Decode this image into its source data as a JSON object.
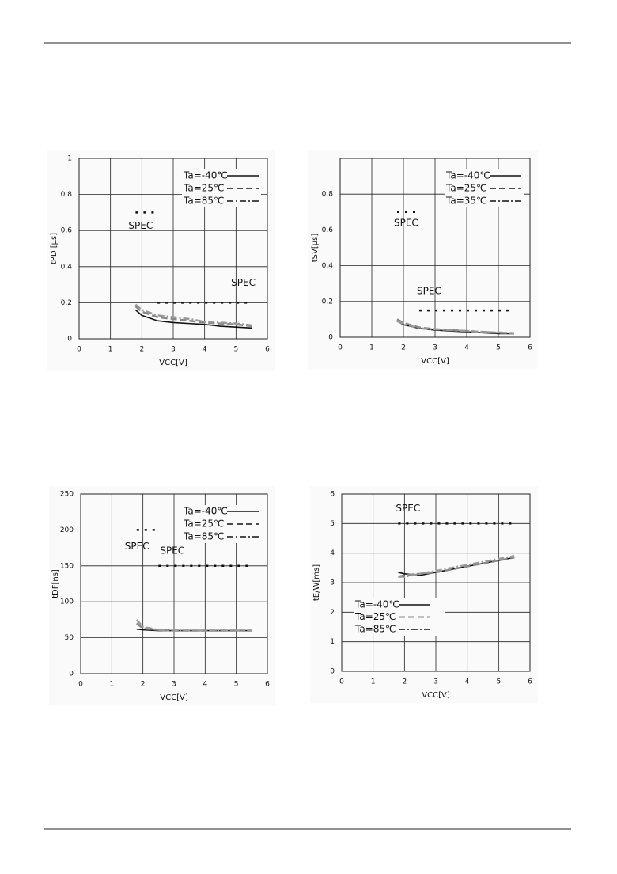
{
  "chart_data": [
    {
      "type": "line",
      "x_label": "VCC[V]",
      "y_label": "tPD [μs]",
      "xlim": [
        0,
        6
      ],
      "xticks": [
        0,
        1,
        2,
        3,
        4,
        5,
        6
      ],
      "ylim": [
        0,
        1
      ],
      "yticks": [
        0,
        0.2,
        0.4,
        0.6,
        0.8,
        1
      ],
      "grid": true,
      "legend": "upper right",
      "x": [
        1.8,
        2,
        2.5,
        3,
        3.5,
        4,
        4.5,
        5,
        5.5
      ],
      "series": [
        {
          "name": "Ta=-40℃",
          "color": "#111111",
          "dash": "solid",
          "values": [
            0.16,
            0.13,
            0.1,
            0.09,
            0.085,
            0.08,
            0.07,
            0.065,
            0.06
          ]
        },
        {
          "name": "Ta=25℃",
          "color": "#888888",
          "dash": "dashed",
          "values": [
            0.18,
            0.15,
            0.12,
            0.11,
            0.1,
            0.09,
            0.085,
            0.08,
            0.07
          ]
        },
        {
          "name": "Ta=85℃",
          "color": "#999999",
          "dash": "dashdot",
          "values": [
            0.19,
            0.16,
            0.13,
            0.12,
            0.11,
            0.095,
            0.09,
            0.085,
            0.075
          ]
        }
      ],
      "spec": [
        {
          "label": "SPEC",
          "x": [
            1.8,
            2.5
          ],
          "values": [
            0.7,
            0.7
          ]
        },
        {
          "label": "SPEC",
          "x": [
            2.5,
            5.5
          ],
          "values": [
            0.2,
            0.2
          ]
        }
      ]
    },
    {
      "type": "line",
      "x_label": "VCC[V]",
      "y_label": "tSV[μs]",
      "xlim": [
        0,
        6
      ],
      "xticks": [
        0,
        1,
        2,
        3,
        4,
        5,
        6
      ],
      "ylim": [
        0,
        1
      ],
      "yticks": [
        0,
        0.2,
        0.4,
        0.6,
        0.8
      ],
      "grid": true,
      "legend": "upper right",
      "x": [
        1.8,
        2,
        2.5,
        3,
        3.5,
        4,
        4.5,
        5,
        5.5
      ],
      "series": [
        {
          "name": "Ta=-40℃",
          "color": "#111111",
          "dash": "solid",
          "values": [
            0.09,
            0.07,
            0.05,
            0.04,
            0.035,
            0.03,
            0.025,
            0.02,
            0.02
          ]
        },
        {
          "name": "Ta=25℃",
          "color": "#888888",
          "dash": "dashed",
          "values": [
            0.1,
            0.08,
            0.055,
            0.045,
            0.04,
            0.035,
            0.03,
            0.025,
            0.022
          ]
        },
        {
          "name": "Ta=35℃",
          "color": "#999999",
          "dash": "dashdot",
          "values": [
            0.09,
            0.075,
            0.05,
            0.045,
            0.04,
            0.035,
            0.03,
            0.027,
            0.023
          ]
        }
      ],
      "spec": [
        {
          "label": "SPEC",
          "x": [
            1.8,
            2.5
          ],
          "values": [
            0.7,
            0.7
          ]
        },
        {
          "label": "SPEC",
          "x": [
            2.5,
            5.5
          ],
          "values": [
            0.15,
            0.15
          ]
        }
      ]
    },
    {
      "type": "line",
      "x_label": "VCC[V]",
      "y_label": "tDF[ns]",
      "xlim": [
        0,
        6
      ],
      "xticks": [
        0,
        1,
        2,
        3,
        4,
        5,
        6
      ],
      "ylim": [
        0,
        250
      ],
      "yticks": [
        0,
        50,
        100,
        150,
        200,
        250
      ],
      "grid": true,
      "legend": "upper right",
      "x": [
        1.8,
        2,
        2.5,
        3,
        3.5,
        4,
        4.5,
        5,
        5.5
      ],
      "series": [
        {
          "name": "Ta=-40℃",
          "color": "#111111",
          "dash": "solid",
          "values": [
            62,
            61,
            60,
            60,
            60,
            60,
            60,
            60,
            60
          ]
        },
        {
          "name": "Ta=25℃",
          "color": "#888888",
          "dash": "dashed",
          "values": [
            70,
            63,
            61,
            60,
            60,
            60,
            60,
            60,
            60
          ]
        },
        {
          "name": "Ta=85℃",
          "color": "#999999",
          "dash": "dashdot",
          "values": [
            75,
            65,
            61,
            60,
            60,
            60,
            60,
            60,
            60
          ]
        }
      ],
      "spec": [
        {
          "label": "SPEC",
          "x": [
            1.8,
            2.5
          ],
          "values": [
            200,
            200
          ]
        },
        {
          "label": "SPEC",
          "x": [
            2.5,
            5.5
          ],
          "values": [
            150,
            150
          ]
        }
      ]
    },
    {
      "type": "line",
      "x_label": "VCC[V]",
      "y_label": "tE/W[ms]",
      "xlim": [
        0,
        6
      ],
      "xticks": [
        0,
        1,
        2,
        3,
        4,
        5,
        6
      ],
      "ylim": [
        0,
        6
      ],
      "yticks": [
        0,
        1,
        2,
        3,
        4,
        5,
        6
      ],
      "grid": true,
      "legend": "lower left",
      "x": [
        1.8,
        2,
        2.5,
        3,
        3.5,
        4,
        4.5,
        5,
        5.5
      ],
      "series": [
        {
          "name": "Ta=-40℃",
          "color": "#111111",
          "dash": "solid",
          "values": [
            3.35,
            3.3,
            3.25,
            3.35,
            3.45,
            3.55,
            3.65,
            3.75,
            3.85
          ]
        },
        {
          "name": "Ta=25℃",
          "color": "#888888",
          "dash": "dashed",
          "values": [
            3.2,
            3.25,
            3.3,
            3.35,
            3.45,
            3.55,
            3.65,
            3.75,
            3.85
          ]
        },
        {
          "name": "Ta=85℃",
          "color": "#999999",
          "dash": "dashdot",
          "values": [
            3.2,
            3.2,
            3.3,
            3.4,
            3.5,
            3.6,
            3.7,
            3.8,
            3.9
          ]
        }
      ],
      "spec": [
        {
          "label": "SPEC",
          "x": [
            1.8,
            5.5
          ],
          "values": [
            5,
            5
          ]
        }
      ]
    }
  ]
}
